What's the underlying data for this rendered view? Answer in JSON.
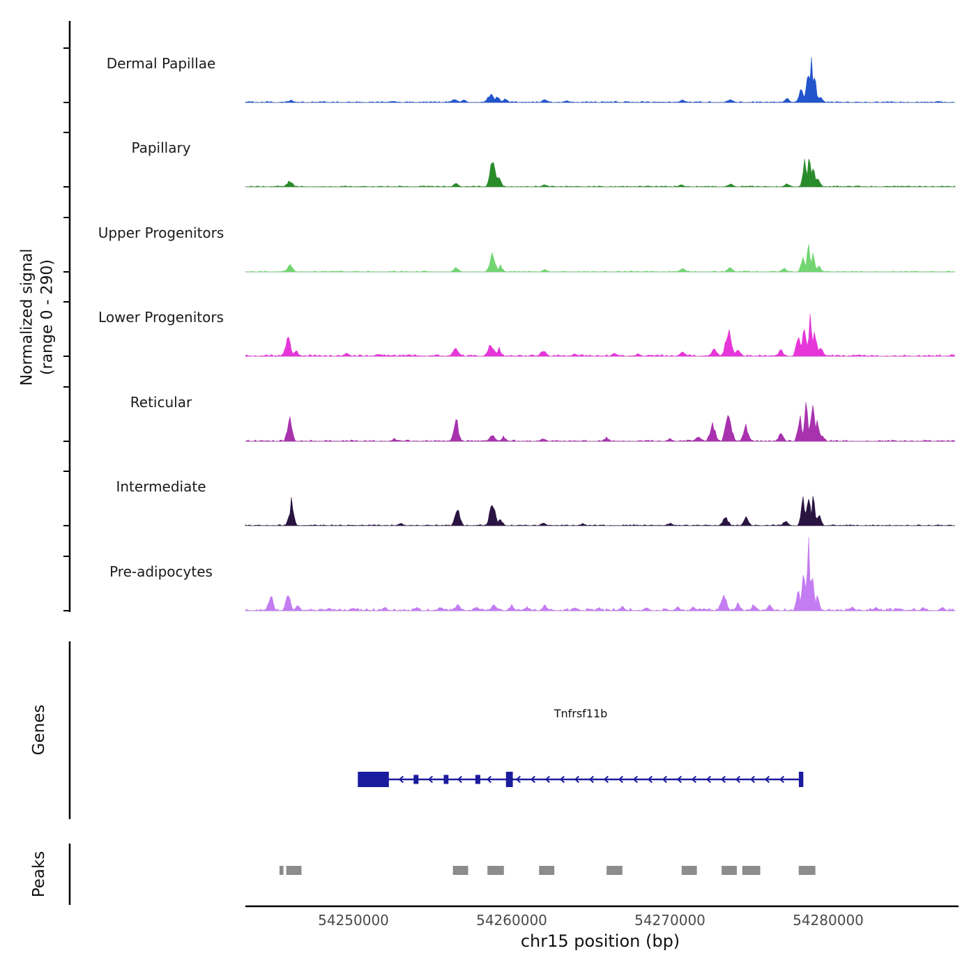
{
  "figure": {
    "ylabel_line1": "Normalized signal",
    "ylabel_line2": "(range 0 - 290)",
    "genes_section_label": "Genes",
    "peaks_section_label": "Peaks",
    "xlabel": "chr15 position (bp)"
  },
  "chart_data": {
    "type": "area",
    "title": "",
    "xlabel": "chr15 position (bp)",
    "ylabel": "Normalized signal (range 0 - 290)",
    "chromosome": "chr15",
    "signal_range": [
      0,
      290
    ],
    "x_range": [
      54243200,
      54288000
    ],
    "x_ticks": [
      54250000,
      54260000,
      54270000,
      54280000
    ],
    "tracks": [
      {
        "name": "Dermal Papillae",
        "color": "#2255cc",
        "noise": 0.018,
        "peaks": [
          [
            54246100,
            0.04,
            400
          ],
          [
            54252500,
            0.02,
            600
          ],
          [
            54256400,
            0.05,
            500
          ],
          [
            54257000,
            0.04,
            400
          ],
          [
            54258700,
            0.15,
            500
          ],
          [
            54259100,
            0.1,
            400
          ],
          [
            54259600,
            0.06,
            400
          ],
          [
            54262100,
            0.05,
            400
          ],
          [
            54263500,
            0.03,
            400
          ],
          [
            54270800,
            0.04,
            500
          ],
          [
            54273800,
            0.05,
            500
          ],
          [
            54277400,
            0.06,
            400
          ],
          [
            54278300,
            0.25,
            350
          ],
          [
            54278700,
            0.45,
            300
          ],
          [
            54278950,
            0.62,
            280
          ],
          [
            54279150,
            0.4,
            280
          ],
          [
            54279500,
            0.1,
            400
          ]
        ]
      },
      {
        "name": "Papillary",
        "color": "#2a8b2a",
        "noise": 0.015,
        "peaks": [
          [
            54246000,
            0.1,
            450
          ],
          [
            54256500,
            0.06,
            400
          ],
          [
            54258800,
            0.42,
            450
          ],
          [
            54259200,
            0.15,
            350
          ],
          [
            54262100,
            0.04,
            400
          ],
          [
            54270700,
            0.04,
            400
          ],
          [
            54273800,
            0.05,
            450
          ],
          [
            54277400,
            0.05,
            400
          ],
          [
            54278500,
            0.35,
            320
          ],
          [
            54278800,
            0.55,
            300
          ],
          [
            54279050,
            0.42,
            280
          ],
          [
            54279350,
            0.15,
            350
          ]
        ]
      },
      {
        "name": "Upper Progenitors",
        "color": "#72d572",
        "noise": 0.015,
        "peaks": [
          [
            54246000,
            0.11,
            450
          ],
          [
            54256500,
            0.07,
            400
          ],
          [
            54258800,
            0.3,
            450
          ],
          [
            54259300,
            0.1,
            350
          ],
          [
            54262100,
            0.04,
            400
          ],
          [
            54270800,
            0.05,
            450
          ],
          [
            54273800,
            0.07,
            450
          ],
          [
            54277200,
            0.06,
            400
          ],
          [
            54278400,
            0.25,
            320
          ],
          [
            54278750,
            0.38,
            300
          ],
          [
            54279050,
            0.3,
            300
          ],
          [
            54279400,
            0.1,
            350
          ]
        ]
      },
      {
        "name": "Lower Progenitors",
        "color": "#e636d9",
        "noise": 0.025,
        "peaks": [
          [
            54245900,
            0.3,
            420
          ],
          [
            54246400,
            0.1,
            350
          ],
          [
            54249600,
            0.05,
            400
          ],
          [
            54251600,
            0.04,
            400
          ],
          [
            54253500,
            0.03,
            400
          ],
          [
            54256500,
            0.15,
            450
          ],
          [
            54258700,
            0.2,
            500
          ],
          [
            54259200,
            0.12,
            400
          ],
          [
            54262000,
            0.1,
            450
          ],
          [
            54264000,
            0.04,
            400
          ],
          [
            54266500,
            0.05,
            400
          ],
          [
            54268000,
            0.04,
            400
          ],
          [
            54270800,
            0.07,
            450
          ],
          [
            54272800,
            0.12,
            450
          ],
          [
            54273700,
            0.42,
            500
          ],
          [
            54274300,
            0.12,
            400
          ],
          [
            54277000,
            0.1,
            400
          ],
          [
            54278100,
            0.35,
            350
          ],
          [
            54278500,
            0.52,
            320
          ],
          [
            54278850,
            0.55,
            320
          ],
          [
            54279150,
            0.38,
            320
          ],
          [
            54279500,
            0.15,
            400
          ]
        ]
      },
      {
        "name": "Reticular",
        "color": "#a832ad",
        "noise": 0.02,
        "peaks": [
          [
            54246000,
            0.45,
            380
          ],
          [
            54252600,
            0.04,
            400
          ],
          [
            54256500,
            0.35,
            420
          ],
          [
            54258800,
            0.1,
            450
          ],
          [
            54259500,
            0.07,
            400
          ],
          [
            54262000,
            0.05,
            400
          ],
          [
            54266000,
            0.06,
            400
          ],
          [
            54270000,
            0.04,
            400
          ],
          [
            54271800,
            0.08,
            450
          ],
          [
            54272700,
            0.28,
            450
          ],
          [
            54273700,
            0.48,
            480
          ],
          [
            54274800,
            0.22,
            450
          ],
          [
            54277000,
            0.12,
            400
          ],
          [
            54278200,
            0.38,
            350
          ],
          [
            54278600,
            0.52,
            320
          ],
          [
            54279000,
            0.65,
            320
          ],
          [
            54279300,
            0.35,
            320
          ],
          [
            54279600,
            0.12,
            350
          ]
        ]
      },
      {
        "name": "Intermediate",
        "color": "#291442",
        "noise": 0.015,
        "peaks": [
          [
            54246100,
            0.35,
            380
          ],
          [
            54253000,
            0.04,
            400
          ],
          [
            54256600,
            0.28,
            420
          ],
          [
            54258800,
            0.4,
            450
          ],
          [
            54259300,
            0.12,
            350
          ],
          [
            54262000,
            0.05,
            400
          ],
          [
            54264500,
            0.03,
            400
          ],
          [
            54270000,
            0.04,
            400
          ],
          [
            54273500,
            0.15,
            450
          ],
          [
            54274800,
            0.12,
            420
          ],
          [
            54277300,
            0.08,
            400
          ],
          [
            54278400,
            0.4,
            330
          ],
          [
            54278750,
            0.55,
            310
          ],
          [
            54279050,
            0.45,
            300
          ],
          [
            54279400,
            0.18,
            350
          ]
        ]
      },
      {
        "name": "Pre-adipocytes",
        "color": "#c47cf2",
        "noise": 0.035,
        "peaks": [
          [
            54244800,
            0.25,
            380
          ],
          [
            54245900,
            0.3,
            380
          ],
          [
            54246500,
            0.1,
            350
          ],
          [
            54248500,
            0.04,
            400
          ],
          [
            54250000,
            0.05,
            400
          ],
          [
            54252000,
            0.06,
            400
          ],
          [
            54254000,
            0.05,
            400
          ],
          [
            54255500,
            0.06,
            400
          ],
          [
            54256600,
            0.1,
            420
          ],
          [
            54257800,
            0.07,
            400
          ],
          [
            54258900,
            0.11,
            420
          ],
          [
            54260000,
            0.08,
            400
          ],
          [
            54261000,
            0.06,
            400
          ],
          [
            54262100,
            0.08,
            400
          ],
          [
            54264000,
            0.05,
            400
          ],
          [
            54265500,
            0.05,
            400
          ],
          [
            54267000,
            0.07,
            400
          ],
          [
            54268500,
            0.05,
            400
          ],
          [
            54270500,
            0.06,
            400
          ],
          [
            54271500,
            0.06,
            400
          ],
          [
            54273400,
            0.28,
            450
          ],
          [
            54274300,
            0.12,
            400
          ],
          [
            54275300,
            0.1,
            400
          ],
          [
            54276300,
            0.08,
            400
          ],
          [
            54278100,
            0.35,
            330
          ],
          [
            54278450,
            0.7,
            300
          ],
          [
            54278750,
            1.02,
            280
          ],
          [
            54279000,
            0.55,
            300
          ],
          [
            54279300,
            0.22,
            330
          ],
          [
            54281500,
            0.06,
            400
          ],
          [
            54283000,
            0.05,
            400
          ],
          [
            54284500,
            0.04,
            400
          ],
          [
            54286000,
            0.05,
            400
          ],
          [
            54287200,
            0.05,
            400
          ]
        ]
      }
    ],
    "gene": {
      "name": "Tnfrsf11b",
      "strand": "-",
      "start": 54250300,
      "end": 54278420,
      "color": "#1b1b9e",
      "exons": [
        {
          "start": 54250300,
          "end": 54252260,
          "size": "large"
        },
        {
          "start": 54253820,
          "end": 54254130,
          "size": "small"
        },
        {
          "start": 54255720,
          "end": 54256020,
          "size": "small"
        },
        {
          "start": 54257720,
          "end": 54258030,
          "size": "small"
        },
        {
          "start": 54259650,
          "end": 54260080,
          "size": "large"
        },
        {
          "start": 54278140,
          "end": 54278420,
          "size": "large"
        }
      ]
    },
    "peak_regions": [
      [
        54245350,
        54245600
      ],
      [
        54245780,
        54246740
      ],
      [
        54256300,
        54257260
      ],
      [
        54258480,
        54259520
      ],
      [
        54261740,
        54262700
      ],
      [
        54266000,
        54267000
      ],
      [
        54270740,
        54271700
      ],
      [
        54273260,
        54274220
      ],
      [
        54274570,
        54275700
      ],
      [
        54278130,
        54279180
      ]
    ],
    "peak_color": "#8c8c8c"
  }
}
